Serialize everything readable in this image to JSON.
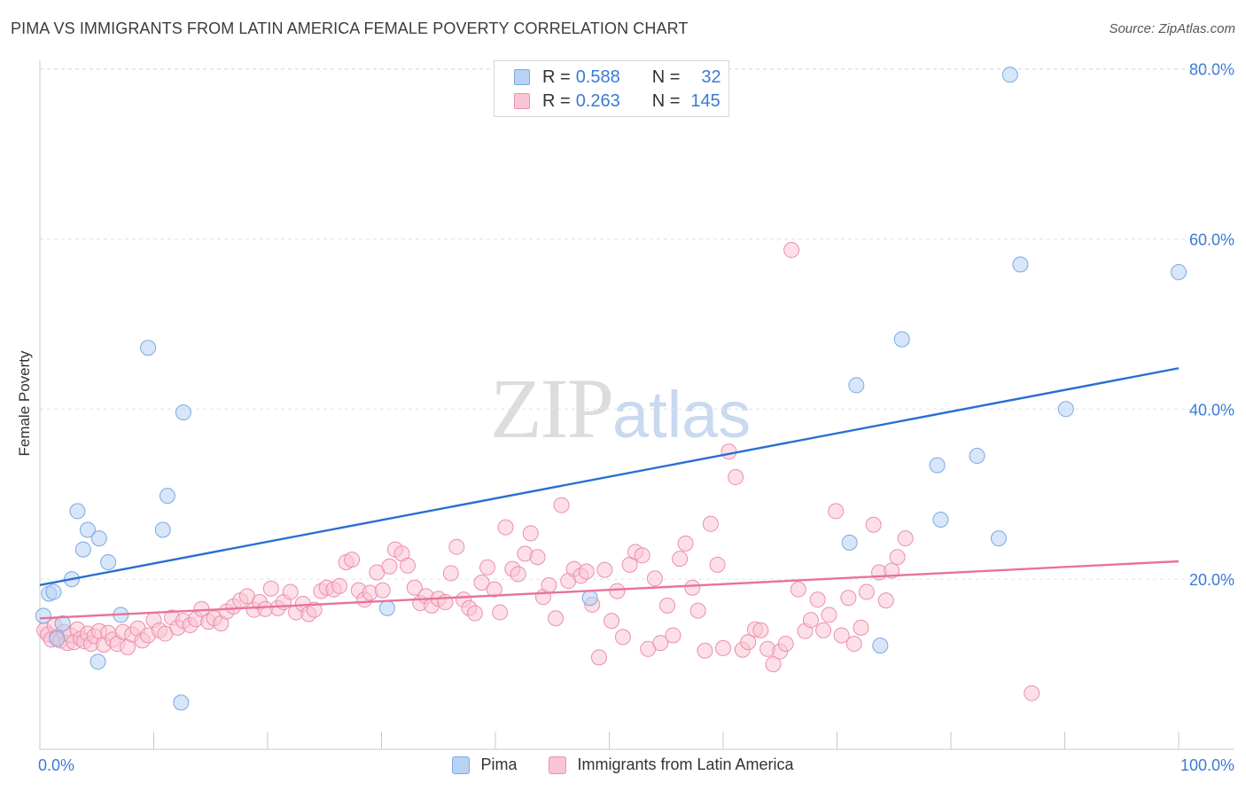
{
  "title": "PIMA VS IMMIGRANTS FROM LATIN AMERICA FEMALE POVERTY CORRELATION CHART",
  "source": "Source: ZipAtlas.com",
  "watermark": {
    "zip": "ZIP",
    "atlas": "atlas"
  },
  "colors": {
    "pima_fill": "#b8d2f4",
    "pima_stroke": "#7ea8e0",
    "pima_line": "#2870d2",
    "latin_fill": "#f9c4d4",
    "latin_stroke": "#ec8fad",
    "latin_line": "#e8739a",
    "grid": "#dde3ea",
    "tick_label": "#3a7bd5"
  },
  "legend_top": [
    {
      "r_label": "R =",
      "r_value": "0.588",
      "n_label": "N =",
      "n_value": "32"
    },
    {
      "r_label": "R =",
      "r_value": "0.263",
      "n_label": "N =",
      "n_value": "145"
    }
  ],
  "chart_data": {
    "type": "scatter",
    "title": "PIMA VS IMMIGRANTS FROM LATIN AMERICA FEMALE POVERTY CORRELATION CHART",
    "xlabel": "",
    "ylabel": "Female Poverty",
    "xlim": [
      0,
      100
    ],
    "ylim": [
      0,
      81
    ],
    "x_tick_labels": [
      "0.0%",
      "100.0%"
    ],
    "y_ticks": [
      20,
      40,
      60,
      80
    ],
    "y_tick_labels": [
      "20.0%",
      "40.0%",
      "60.0%",
      "80.0%"
    ],
    "grid": true,
    "legend_position": "bottom-center",
    "series": [
      {
        "name": "Pima",
        "r": 0.588,
        "n": 32,
        "trend": {
          "x": [
            0,
            100
          ],
          "y": [
            19.3,
            44.8
          ]
        },
        "points": [
          [
            0.3,
            15.7
          ],
          [
            0.8,
            18.3
          ],
          [
            1.2,
            18.5
          ],
          [
            1.5,
            13.0
          ],
          [
            2.0,
            14.8
          ],
          [
            2.8,
            20.0
          ],
          [
            3.3,
            28.0
          ],
          [
            3.8,
            23.5
          ],
          [
            4.2,
            25.8
          ],
          [
            5.2,
            24.8
          ],
          [
            5.1,
            10.3
          ],
          [
            6.0,
            22.0
          ],
          [
            7.1,
            15.8
          ],
          [
            9.5,
            47.2
          ],
          [
            10.8,
            25.8
          ],
          [
            11.2,
            29.8
          ],
          [
            12.6,
            39.6
          ],
          [
            12.4,
            5.5
          ],
          [
            30.5,
            16.6
          ],
          [
            48.3,
            17.8
          ],
          [
            71.1,
            24.3
          ],
          [
            71.7,
            42.8
          ],
          [
            73.8,
            12.2
          ],
          [
            75.7,
            48.2
          ],
          [
            78.8,
            33.4
          ],
          [
            79.1,
            27.0
          ],
          [
            82.3,
            34.5
          ],
          [
            84.2,
            24.8
          ],
          [
            85.2,
            79.3
          ],
          [
            86.1,
            57.0
          ],
          [
            90.1,
            40.0
          ],
          [
            100.0,
            56.1
          ]
        ]
      },
      {
        "name": "Immigrants from Latin America",
        "r": 0.263,
        "n": 145,
        "trend": {
          "x": [
            0,
            100
          ],
          "y": [
            15.4,
            22.1
          ]
        },
        "points": [
          [
            0.4,
            14.0
          ],
          [
            0.7,
            13.5
          ],
          [
            1.0,
            12.9
          ],
          [
            1.3,
            14.5
          ],
          [
            1.5,
            13.2
          ],
          [
            1.8,
            12.8
          ],
          [
            2.1,
            13.8
          ],
          [
            2.4,
            12.5
          ],
          [
            2.7,
            13.4
          ],
          [
            3.0,
            12.6
          ],
          [
            3.3,
            14.1
          ],
          [
            3.6,
            13.0
          ],
          [
            3.9,
            12.7
          ],
          [
            4.2,
            13.6
          ],
          [
            4.5,
            12.4
          ],
          [
            4.8,
            13.3
          ],
          [
            5.2,
            13.9
          ],
          [
            5.6,
            12.3
          ],
          [
            6.0,
            13.7
          ],
          [
            6.4,
            12.9
          ],
          [
            6.8,
            12.4
          ],
          [
            7.3,
            13.8
          ],
          [
            7.7,
            12.0
          ],
          [
            8.1,
            13.5
          ],
          [
            8.6,
            14.2
          ],
          [
            9.0,
            12.8
          ],
          [
            9.5,
            13.4
          ],
          [
            10.0,
            15.2
          ],
          [
            10.5,
            14.0
          ],
          [
            11.0,
            13.6
          ],
          [
            11.6,
            15.5
          ],
          [
            12.1,
            14.3
          ],
          [
            12.6,
            15.1
          ],
          [
            13.2,
            14.6
          ],
          [
            13.7,
            15.3
          ],
          [
            14.2,
            16.5
          ],
          [
            14.8,
            15.0
          ],
          [
            15.3,
            15.4
          ],
          [
            15.9,
            14.8
          ],
          [
            16.4,
            16.2
          ],
          [
            17.0,
            16.8
          ],
          [
            17.6,
            17.5
          ],
          [
            18.2,
            18.0
          ],
          [
            18.8,
            16.4
          ],
          [
            19.3,
            17.3
          ],
          [
            19.8,
            16.5
          ],
          [
            20.3,
            18.9
          ],
          [
            20.9,
            16.6
          ],
          [
            21.4,
            17.3
          ],
          [
            22.0,
            18.5
          ],
          [
            22.5,
            16.1
          ],
          [
            23.1,
            17.1
          ],
          [
            23.6,
            15.9
          ],
          [
            24.1,
            16.4
          ],
          [
            24.7,
            18.6
          ],
          [
            25.2,
            19.0
          ],
          [
            25.8,
            18.8
          ],
          [
            26.3,
            19.2
          ],
          [
            26.9,
            22.0
          ],
          [
            27.4,
            22.3
          ],
          [
            28.0,
            18.7
          ],
          [
            28.5,
            17.6
          ],
          [
            29.0,
            18.4
          ],
          [
            29.6,
            20.8
          ],
          [
            30.1,
            18.7
          ],
          [
            30.7,
            21.5
          ],
          [
            31.2,
            23.5
          ],
          [
            31.8,
            23.0
          ],
          [
            32.3,
            21.6
          ],
          [
            32.9,
            19.0
          ],
          [
            33.4,
            17.2
          ],
          [
            33.9,
            18.0
          ],
          [
            34.4,
            16.9
          ],
          [
            35.0,
            17.7
          ],
          [
            35.6,
            17.3
          ],
          [
            36.1,
            20.7
          ],
          [
            36.6,
            23.8
          ],
          [
            37.2,
            17.6
          ],
          [
            37.7,
            16.6
          ],
          [
            38.2,
            16.0
          ],
          [
            38.8,
            19.6
          ],
          [
            39.3,
            21.4
          ],
          [
            39.9,
            18.8
          ],
          [
            40.4,
            16.1
          ],
          [
            40.9,
            26.1
          ],
          [
            41.5,
            21.2
          ],
          [
            42.0,
            20.6
          ],
          [
            42.6,
            23.0
          ],
          [
            43.1,
            25.4
          ],
          [
            43.7,
            22.6
          ],
          [
            44.2,
            17.9
          ],
          [
            44.7,
            19.3
          ],
          [
            45.3,
            15.4
          ],
          [
            45.8,
            28.7
          ],
          [
            46.4,
            19.8
          ],
          [
            46.9,
            21.2
          ],
          [
            47.5,
            20.4
          ],
          [
            48.0,
            20.9
          ],
          [
            48.5,
            17.0
          ],
          [
            49.1,
            10.8
          ],
          [
            49.6,
            21.1
          ],
          [
            50.2,
            15.1
          ],
          [
            50.7,
            18.6
          ],
          [
            51.2,
            13.2
          ],
          [
            51.8,
            21.7
          ],
          [
            52.3,
            23.2
          ],
          [
            52.9,
            22.8
          ],
          [
            53.4,
            11.8
          ],
          [
            54.0,
            20.1
          ],
          [
            54.5,
            12.5
          ],
          [
            55.1,
            16.9
          ],
          [
            55.6,
            13.4
          ],
          [
            56.2,
            22.4
          ],
          [
            56.7,
            24.2
          ],
          [
            57.3,
            19.0
          ],
          [
            57.8,
            16.3
          ],
          [
            58.4,
            11.6
          ],
          [
            58.9,
            26.5
          ],
          [
            59.5,
            21.7
          ],
          [
            60.0,
            11.9
          ],
          [
            60.5,
            35.0
          ],
          [
            61.1,
            32.0
          ],
          [
            61.7,
            11.7
          ],
          [
            62.2,
            12.6
          ],
          [
            62.8,
            14.1
          ],
          [
            63.3,
            14.0
          ],
          [
            63.9,
            11.8
          ],
          [
            64.4,
            10.0
          ],
          [
            65.0,
            11.5
          ],
          [
            65.5,
            12.4
          ],
          [
            66.0,
            58.7
          ],
          [
            66.6,
            18.8
          ],
          [
            67.2,
            13.9
          ],
          [
            67.7,
            15.2
          ],
          [
            68.3,
            17.6
          ],
          [
            68.8,
            14.0
          ],
          [
            69.3,
            15.8
          ],
          [
            69.9,
            28.0
          ],
          [
            70.4,
            13.4
          ],
          [
            71.0,
            17.8
          ],
          [
            71.5,
            12.4
          ],
          [
            72.1,
            14.3
          ],
          [
            72.6,
            18.5
          ],
          [
            73.2,
            26.4
          ],
          [
            73.7,
            20.8
          ],
          [
            74.3,
            17.5
          ],
          [
            74.8,
            21.0
          ],
          [
            75.3,
            22.6
          ],
          [
            76.0,
            24.8
          ],
          [
            87.1,
            6.6
          ]
        ]
      }
    ]
  },
  "bottom_legend": [
    "Pima",
    "Immigrants from Latin America"
  ]
}
